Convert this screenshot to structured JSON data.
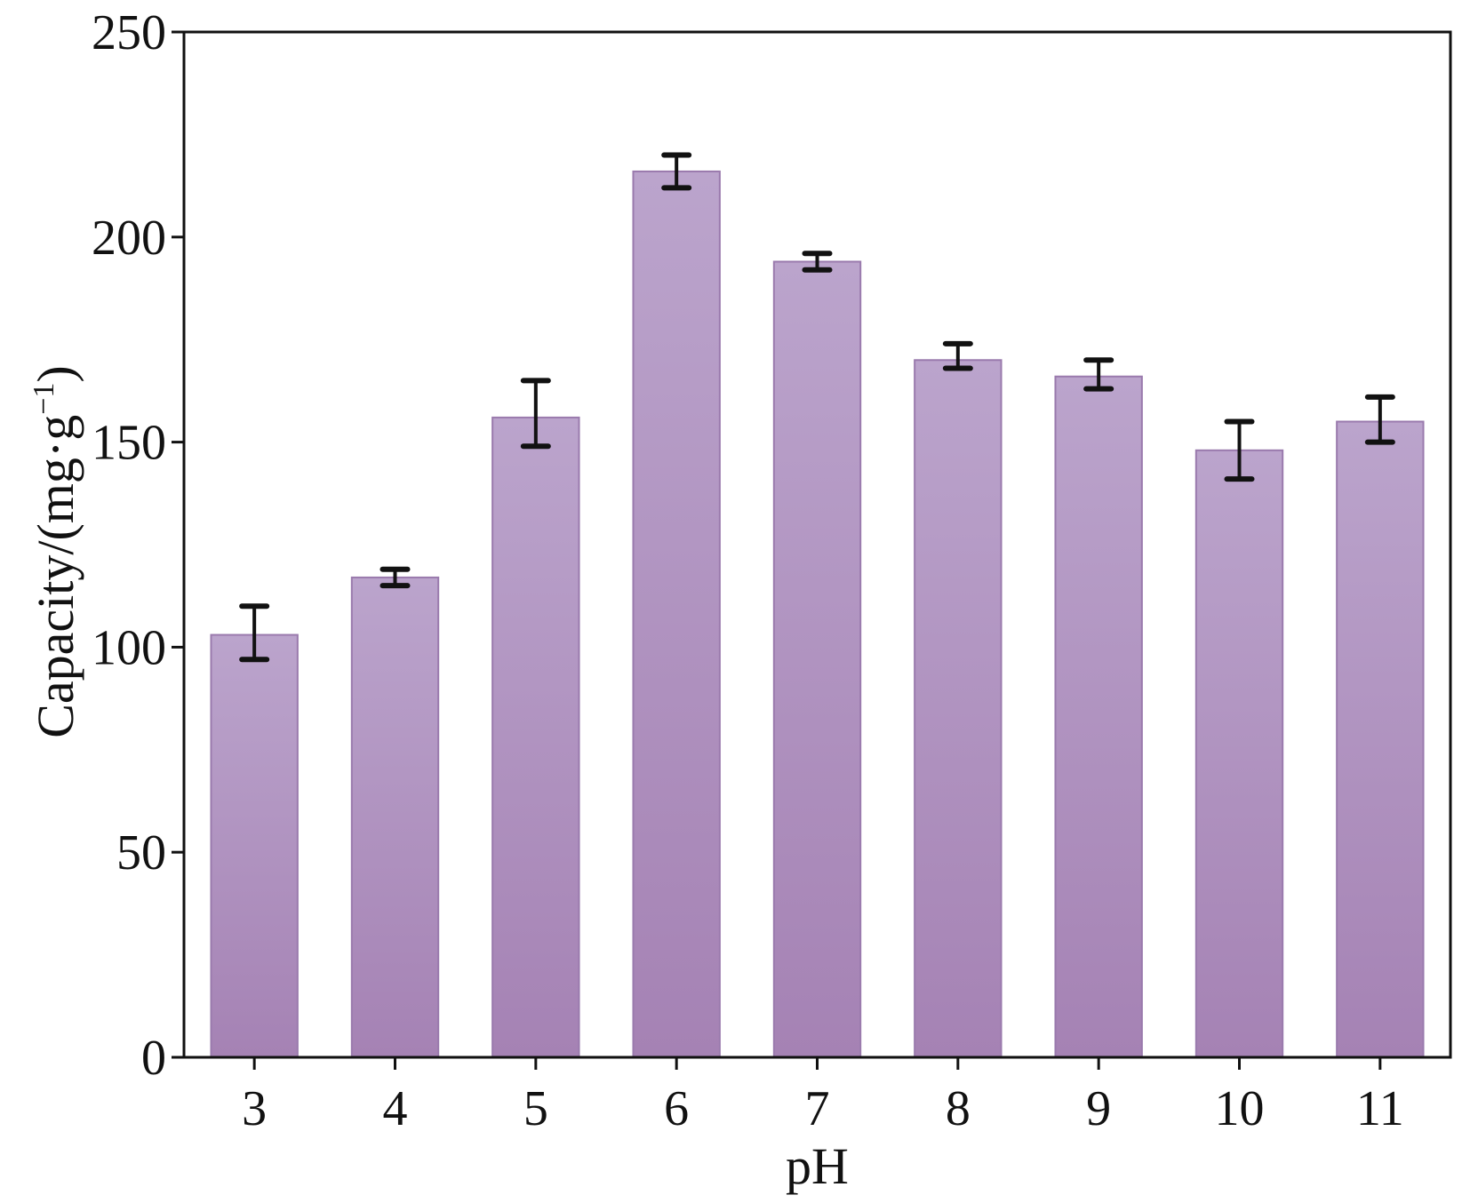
{
  "chart_data": {
    "type": "bar",
    "title": "",
    "xlabel": "pH",
    "ylabel": {
      "main": "Capacity/(mg·g",
      "superscript": "−1",
      "close": ")"
    },
    "categories": [
      "3",
      "4",
      "5",
      "6",
      "7",
      "8",
      "9",
      "10",
      "11"
    ],
    "values": [
      103,
      117,
      156,
      216,
      194,
      170,
      166,
      148,
      155
    ],
    "error_low": [
      97,
      115,
      149,
      212,
      192,
      168,
      163,
      141,
      150
    ],
    "error_high": [
      110,
      119,
      165,
      220,
      196,
      174,
      170,
      155,
      161
    ],
    "ylim": [
      0,
      250
    ],
    "yticks": [
      0,
      50,
      100,
      150,
      200,
      250
    ],
    "grid": false,
    "legend": "none",
    "colors": {
      "bar_top": "#bba4cc",
      "bar_bottom": "#a582b4",
      "bar_edge": "#9a7aad",
      "error_bar": "#111111",
      "axis": "#111111"
    }
  }
}
